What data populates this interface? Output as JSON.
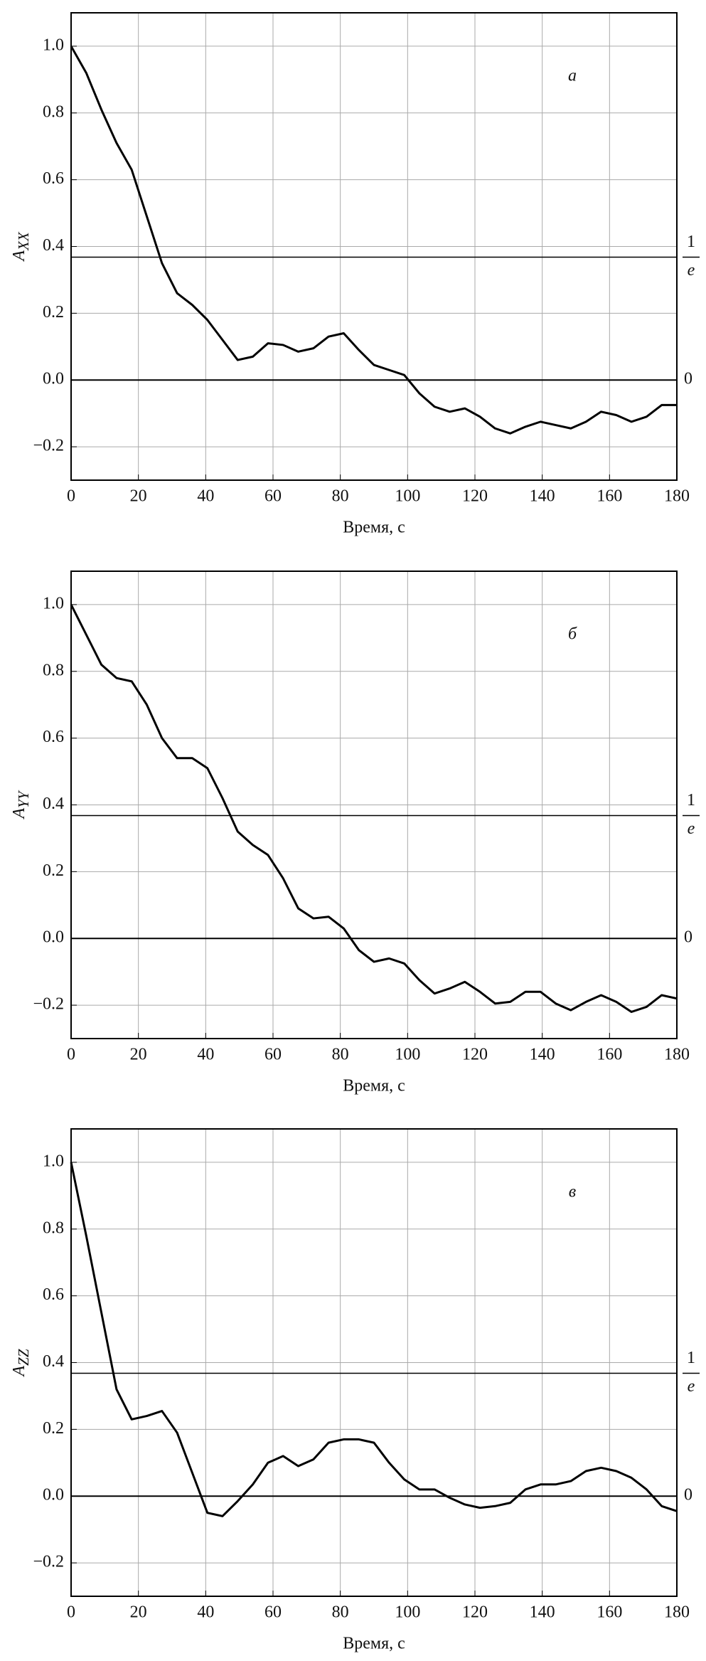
{
  "chart_data": [
    {
      "type": "line",
      "panel_label": "a",
      "ylabel": "A",
      "ylabel_sub": "XX",
      "xlabel": "Время, с",
      "color": "#000000",
      "grid": true,
      "xlim": [
        0,
        180
      ],
      "ylim": [
        -0.3,
        1.1
      ],
      "xticks": [
        0,
        20,
        40,
        60,
        80,
        100,
        120,
        140,
        160,
        180
      ],
      "yticks": [
        {
          "value": -0.2,
          "label": "−0.2"
        },
        {
          "value": 0,
          "label": "0.0"
        },
        0.2,
        0.4,
        0.6,
        0.8,
        {
          "value": 1,
          "label": "1.0"
        }
      ],
      "hlines": [
        {
          "value": 0.368,
          "numerator": "1",
          "denominator": "e"
        },
        {
          "value": 0,
          "label": "0"
        }
      ],
      "x": [
        0,
        4.5,
        9,
        13.5,
        18,
        22.5,
        27,
        31.5,
        36,
        40.5,
        45,
        49.5,
        54,
        58.5,
        63,
        67.5,
        72,
        76.5,
        81,
        85.5,
        90,
        94.5,
        99,
        103.5,
        108,
        112.5,
        117,
        121.5,
        126,
        130.5,
        135,
        139.5,
        144,
        148.5,
        153,
        157.5,
        162,
        166.5,
        171,
        175.5,
        180
      ],
      "values": [
        1.0,
        0.92,
        0.81,
        0.71,
        0.63,
        0.49,
        0.35,
        0.26,
        0.225,
        0.18,
        0.12,
        0.06,
        0.07,
        0.11,
        0.105,
        0.085,
        0.095,
        0.13,
        0.14,
        0.09,
        0.045,
        0.03,
        0.015,
        -0.04,
        -0.08,
        -0.095,
        -0.085,
        -0.11,
        -0.145,
        -0.16,
        -0.14,
        -0.125,
        -0.135,
        -0.145,
        -0.125,
        -0.095,
        -0.105,
        -0.125,
        -0.11,
        -0.075,
        -0.075
      ]
    },
    {
      "type": "line",
      "panel_label": "б",
      "ylabel": "A",
      "ylabel_sub": "YY",
      "xlabel": "Время, с",
      "color": "#000000",
      "grid": true,
      "xlim": [
        0,
        180
      ],
      "ylim": [
        -0.3,
        1.1
      ],
      "xticks": [
        0,
        20,
        40,
        60,
        80,
        100,
        120,
        140,
        160,
        180
      ],
      "yticks": [
        {
          "value": -0.2,
          "label": "−0.2"
        },
        {
          "value": 0,
          "label": "0.0"
        },
        0.2,
        0.4,
        0.6,
        0.8,
        {
          "value": 1,
          "label": "1.0"
        }
      ],
      "hlines": [
        {
          "value": 0.368,
          "numerator": "1",
          "denominator": "e"
        },
        {
          "value": 0,
          "label": "0"
        }
      ],
      "x": [
        0,
        4.5,
        9,
        13.5,
        18,
        22.5,
        27,
        31.5,
        36,
        40.5,
        45,
        49.5,
        54,
        58.5,
        63,
        67.5,
        72,
        76.5,
        81,
        85.5,
        90,
        94.5,
        99,
        103.5,
        108,
        112.5,
        117,
        121.5,
        126,
        130.5,
        135,
        139.5,
        144,
        148.5,
        153,
        157.5,
        162,
        166.5,
        171,
        175.5,
        180
      ],
      "values": [
        1.0,
        0.91,
        0.82,
        0.78,
        0.77,
        0.7,
        0.6,
        0.54,
        0.54,
        0.51,
        0.42,
        0.32,
        0.28,
        0.25,
        0.18,
        0.09,
        0.06,
        0.065,
        0.03,
        -0.035,
        -0.07,
        -0.06,
        -0.075,
        -0.125,
        -0.165,
        -0.15,
        -0.13,
        -0.16,
        -0.195,
        -0.19,
        -0.16,
        -0.16,
        -0.195,
        -0.215,
        -0.19,
        -0.17,
        -0.19,
        -0.22,
        -0.205,
        -0.17,
        -0.18
      ]
    },
    {
      "type": "line",
      "panel_label": "в",
      "ylabel": "A",
      "ylabel_sub": "ZZ",
      "xlabel": "Время, с",
      "color": "#000000",
      "grid": true,
      "xlim": [
        0,
        180
      ],
      "ylim": [
        -0.3,
        1.1
      ],
      "xticks": [
        0,
        20,
        40,
        60,
        80,
        100,
        120,
        140,
        160,
        180
      ],
      "yticks": [
        {
          "value": -0.2,
          "label": "−0.2"
        },
        {
          "value": 0,
          "label": "0.0"
        },
        0.2,
        0.4,
        0.6,
        0.8,
        {
          "value": 1,
          "label": "1.0"
        }
      ],
      "hlines": [
        {
          "value": 0.368,
          "numerator": "1",
          "denominator": "e"
        },
        {
          "value": 0,
          "label": "0"
        }
      ],
      "x": [
        0,
        4.5,
        9,
        13.5,
        18,
        22.5,
        27,
        31.5,
        36,
        40.5,
        45,
        49.5,
        54,
        58.5,
        63,
        67.5,
        72,
        76.5,
        81,
        85.5,
        90,
        94.5,
        99,
        103.5,
        108,
        112.5,
        117,
        121.5,
        126,
        130.5,
        135,
        139.5,
        144,
        148.5,
        153,
        157.5,
        162,
        166.5,
        171,
        175.5,
        180
      ],
      "values": [
        1.0,
        0.78,
        0.55,
        0.32,
        0.23,
        0.24,
        0.255,
        0.19,
        0.07,
        -0.05,
        -0.06,
        -0.015,
        0.035,
        0.1,
        0.12,
        0.09,
        0.11,
        0.16,
        0.17,
        0.17,
        0.16,
        0.1,
        0.05,
        0.02,
        0.02,
        -0.005,
        -0.025,
        -0.035,
        -0.03,
        -0.02,
        0.02,
        0.035,
        0.035,
        0.045,
        0.075,
        0.085,
        0.075,
        0.055,
        0.02,
        -0.03,
        -0.045
      ]
    }
  ]
}
